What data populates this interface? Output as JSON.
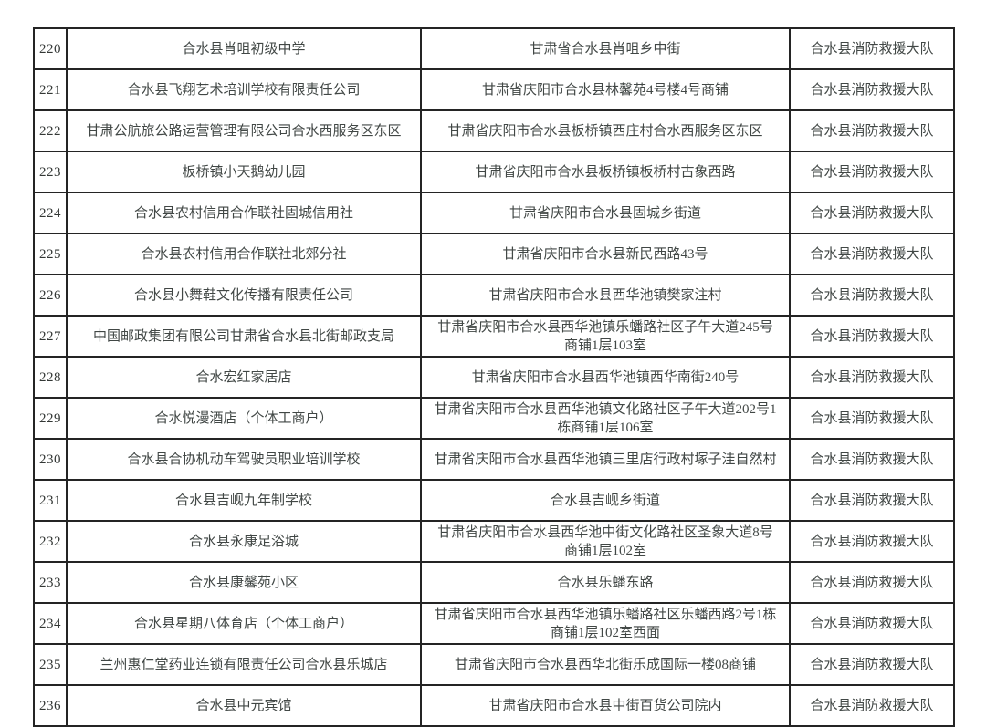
{
  "colors": {
    "page_background": "#ffffff",
    "border": "#242424",
    "text": "#414745"
  },
  "table": {
    "rows": [
      {
        "no": "220",
        "name": "合水县肖咀初级中学",
        "address": "甘肃省合水县肖咀乡中街",
        "brigade": "合水县消防救援大队"
      },
      {
        "no": "221",
        "name": "合水县飞翔艺术培训学校有限责任公司",
        "address": "甘肃省庆阳市合水县林馨苑4号楼4号商铺",
        "brigade": "合水县消防救援大队"
      },
      {
        "no": "222",
        "name": "甘肃公航旅公路运营管理有限公司合水西服务区东区",
        "address": "甘肃省庆阳市合水县板桥镇西庄村合水西服务区东区",
        "brigade": "合水县消防救援大队"
      },
      {
        "no": "223",
        "name": "板桥镇小天鹅幼儿园",
        "address": "甘肃省庆阳市合水县板桥镇板桥村古象西路",
        "brigade": "合水县消防救援大队"
      },
      {
        "no": "224",
        "name": "合水县农村信用合作联社固城信用社",
        "address": "甘肃省庆阳市合水县固城乡街道",
        "brigade": "合水县消防救援大队"
      },
      {
        "no": "225",
        "name": "合水县农村信用合作联社北郊分社",
        "address": "甘肃省庆阳市合水县新民西路43号",
        "brigade": "合水县消防救援大队"
      },
      {
        "no": "226",
        "name": "合水县小舞鞋文化传播有限责任公司",
        "address": "甘肃省庆阳市合水县西华池镇樊家注村",
        "brigade": "合水县消防救援大队"
      },
      {
        "no": "227",
        "name": "中国邮政集团有限公司甘肃省合水县北街邮政支局",
        "address": "甘肃省庆阳市合水县西华池镇乐蟠路社区子午大道245号商铺1层103室",
        "brigade": "合水县消防救援大队"
      },
      {
        "no": "228",
        "name": "合水宏红家居店",
        "address": "甘肃省庆阳市合水县西华池镇西华南街240号",
        "brigade": "合水县消防救援大队"
      },
      {
        "no": "229",
        "name": "合水悦漫酒店（个体工商户）",
        "address": "甘肃省庆阳市合水县西华池镇文化路社区子午大道202号1栋商铺1层106室",
        "brigade": "合水县消防救援大队"
      },
      {
        "no": "230",
        "name": "合水县合协机动车驾驶员职业培训学校",
        "address": "甘肃省庆阳市合水县西华池镇三里店行政村塚子洼自然村",
        "brigade": "合水县消防救援大队"
      },
      {
        "no": "231",
        "name": "合水县吉岘九年制学校",
        "address": "合水县吉岘乡街道",
        "brigade": "合水县消防救援大队"
      },
      {
        "no": "232",
        "name": "合水县永康足浴城",
        "address": "甘肃省庆阳市合水县西华池中街文化路社区圣象大道8号商铺1层102室",
        "brigade": "合水县消防救援大队"
      },
      {
        "no": "233",
        "name": "合水县康馨苑小区",
        "address": "合水县乐蟠东路",
        "brigade": "合水县消防救援大队"
      },
      {
        "no": "234",
        "name": "合水县星期八体育店（个体工商户）",
        "address": "甘肃省庆阳市合水县西华池镇乐蟠路社区乐蟠西路2号1栋商铺1层102室西面",
        "brigade": "合水县消防救援大队"
      },
      {
        "no": "235",
        "name": "兰州惠仁堂药业连锁有限责任公司合水县乐城店",
        "address": "甘肃省庆阳市合水县西华北街乐成国际一楼08商铺",
        "brigade": "合水县消防救援大队"
      },
      {
        "no": "236",
        "name": "合水县中元宾馆",
        "address": "甘肃省庆阳市合水县中街百货公司院内",
        "brigade": "合水县消防救援大队"
      }
    ]
  }
}
